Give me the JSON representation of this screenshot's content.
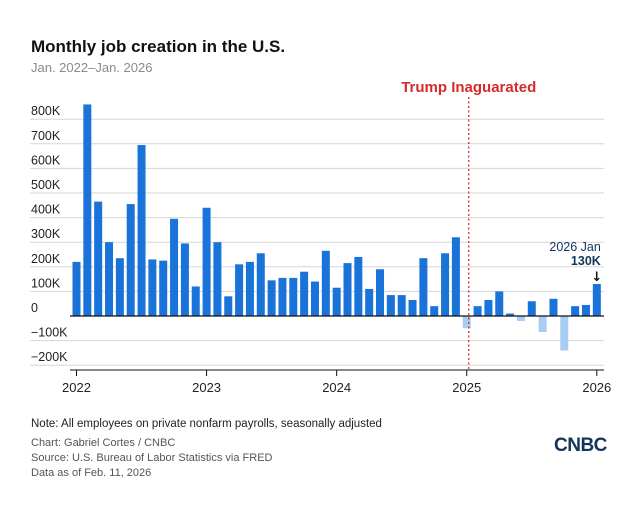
{
  "header": {
    "title": "Monthly job creation in the U.S.",
    "subtitle": "Jan. 2022–Jan. 2026"
  },
  "footer": {
    "note": "Note: All employees on private nonfarm payrolls, seasonally adjusted",
    "credit": "Chart: Gabriel Cortes / CNBC",
    "source": "Source: U.S. Bureau of Labor Statistics via FRED",
    "date": "Data as of Feb. 11, 2026",
    "logo": "CNBC"
  },
  "colors": {
    "positive": "#1a73d8",
    "negative": "#a8cdf2",
    "marker": "#d62b2b",
    "grid": "#d6d6d6",
    "logo": "#12355b"
  },
  "chart_data": {
    "type": "bar",
    "months": [
      "2022-01",
      "2022-02",
      "2022-03",
      "2022-04",
      "2022-05",
      "2022-06",
      "2022-07",
      "2022-08",
      "2022-09",
      "2022-10",
      "2022-11",
      "2022-12",
      "2023-01",
      "2023-02",
      "2023-03",
      "2023-04",
      "2023-05",
      "2023-06",
      "2023-07",
      "2023-08",
      "2023-09",
      "2023-10",
      "2023-11",
      "2023-12",
      "2024-01",
      "2024-02",
      "2024-03",
      "2024-04",
      "2024-05",
      "2024-06",
      "2024-07",
      "2024-08",
      "2024-09",
      "2024-10",
      "2024-11",
      "2024-12",
      "2025-01",
      "2025-02",
      "2025-03",
      "2025-04",
      "2025-05",
      "2025-06",
      "2025-07",
      "2025-08",
      "2025-09",
      "2025-10",
      "2025-11",
      "2025-12",
      "2026-01"
    ],
    "values": [
      220,
      860,
      465,
      300,
      235,
      455,
      695,
      230,
      225,
      395,
      295,
      120,
      440,
      300,
      80,
      210,
      220,
      255,
      145,
      155,
      155,
      180,
      140,
      265,
      115,
      215,
      240,
      110,
      190,
      85,
      85,
      65,
      235,
      40,
      255,
      320,
      -50,
      40,
      65,
      100,
      10,
      -20,
      60,
      -65,
      70,
      -140,
      40,
      45,
      130
    ],
    "value_unit": "thousands of jobs",
    "ylim": [
      -200,
      860
    ],
    "yticks": [
      -200,
      -100,
      0,
      100,
      200,
      300,
      400,
      500,
      600,
      700,
      800
    ],
    "ytick_labels": [
      "−200K",
      "−100K",
      "0",
      "100K",
      "200K",
      "300K",
      "400K",
      "500K",
      "600K",
      "700K",
      "800K"
    ],
    "xtick_labels": [
      "2022",
      "2023",
      "2024",
      "2025",
      "2026"
    ],
    "grid": true,
    "annotations": {
      "marker_label": "Trump Inaguarated",
      "marker_month": "2025-01",
      "last_label": "2026 Jan",
      "last_value_label": "130K",
      "arrow": "↓"
    }
  }
}
